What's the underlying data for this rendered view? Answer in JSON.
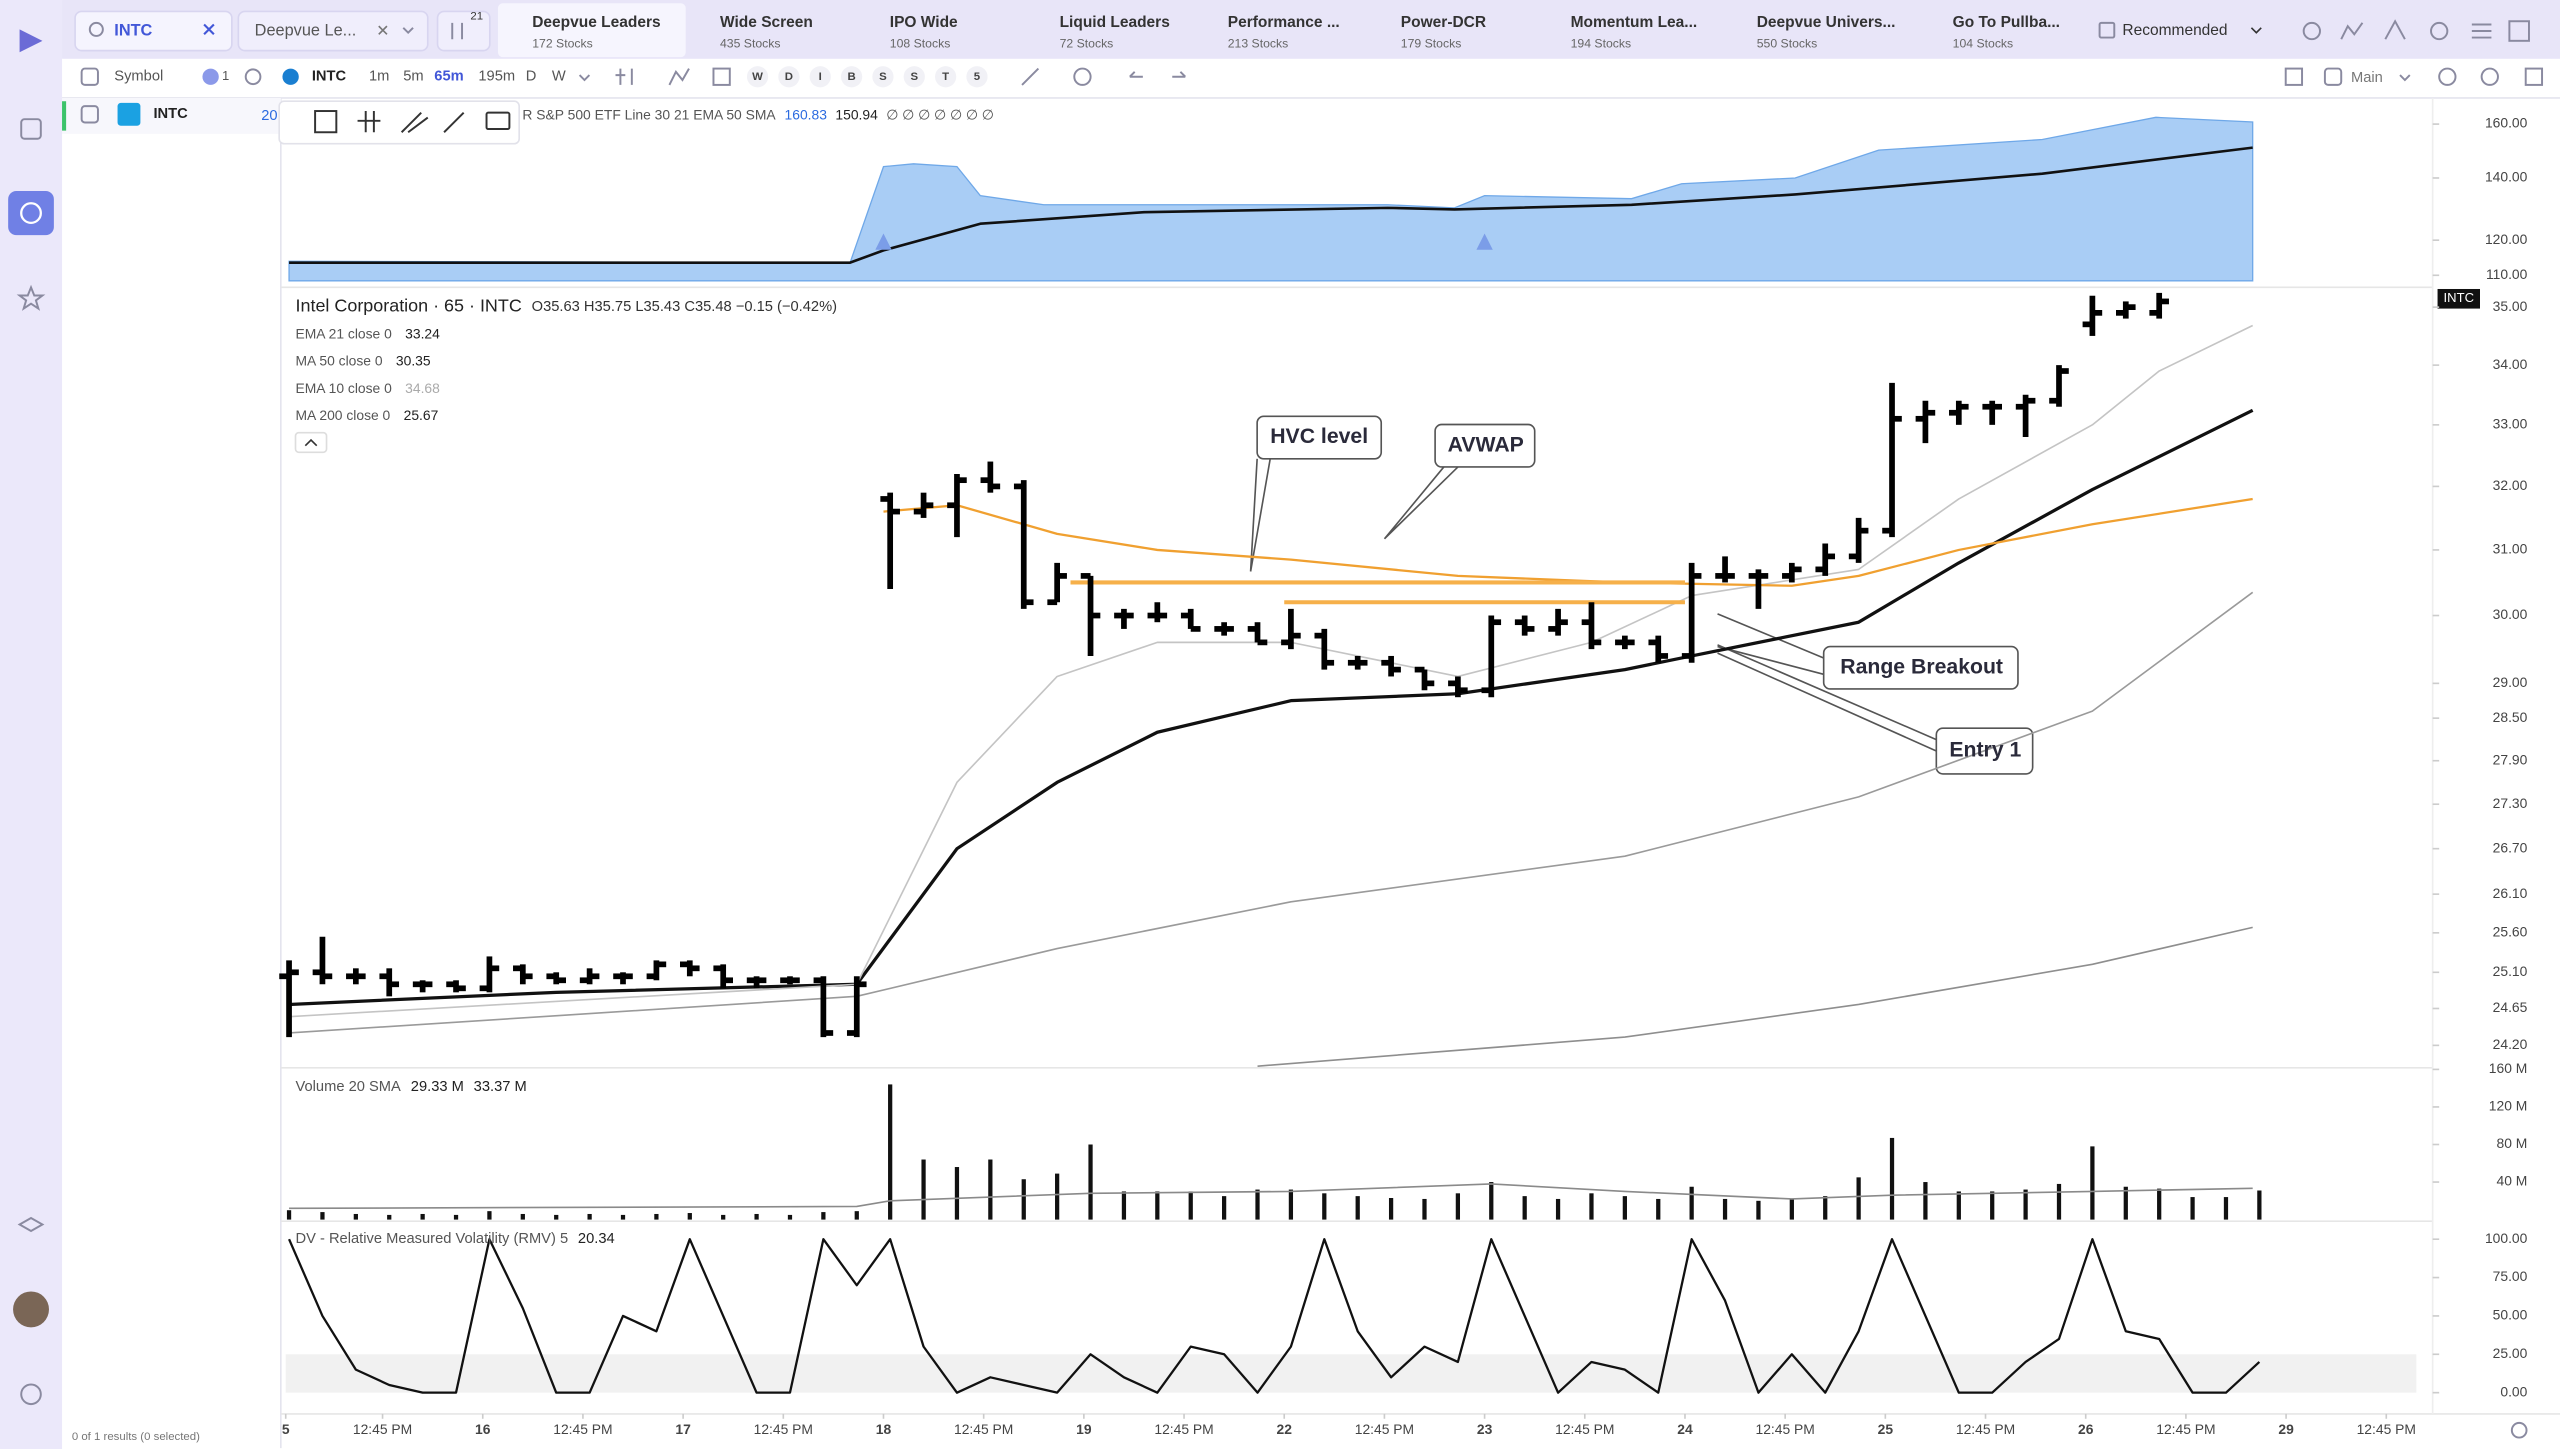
{
  "search": {
    "query": "INTC"
  },
  "watchlist_dropdown": "Deepvue Le...",
  "filter_count": "21",
  "tabs": [
    {
      "name": "Deepvue Leaders",
      "count": "172 Stocks"
    },
    {
      "name": "Wide Screen",
      "count": "435 Stocks"
    },
    {
      "name": "IPO Wide",
      "count": "108 Stocks"
    },
    {
      "name": "Liquid Leaders",
      "count": "72 Stocks"
    },
    {
      "name": "Performance ...",
      "count": "213 Stocks"
    },
    {
      "name": "Power-DCR",
      "count": "179 Stocks"
    },
    {
      "name": "Momentum Lea...",
      "count": "194 Stocks"
    },
    {
      "name": "Deepvue Univers...",
      "count": "550 Stocks"
    },
    {
      "name": "Go To Pullba...",
      "count": "104 Stocks"
    }
  ],
  "sort": "Recommended",
  "toolbar": {
    "symbol_header": "Symbol",
    "count": "1",
    "symbol": "INTC",
    "intervals": [
      "1m",
      "5m",
      "65m",
      "195m",
      "D",
      "W"
    ],
    "modes": [
      "W",
      "D",
      "I",
      "B",
      "S",
      "S",
      "T",
      "5"
    ],
    "layout": "Main"
  },
  "watchlist": {
    "rows": [
      {
        "symbol": "INTC",
        "value": "20"
      }
    ],
    "footer": "0 of 1 results (0 selected)"
  },
  "chart_data": [
    {
      "type": "area",
      "legend": "R S&P 500 ETF Line 30 21 EMA 50 SMA",
      "status_icons": "∅ ∅ ∅ ∅ ∅ ∅ ∅",
      "log_scale": true,
      "xlim": [
        -0.1,
        63.7
      ],
      "ylim": [
        108.5,
        170.7
      ],
      "yticks": [
        {
          "value": 160,
          "label": "160.00"
        },
        {
          "value": 140,
          "label": "140.00"
        },
        {
          "value": 120,
          "label": "120.00"
        },
        {
          "value": 110,
          "label": "110.00"
        }
      ],
      "markers_x": [
        17.8,
        35.8
      ],
      "series": [
        {
          "color": "#a9cdf5",
          "last": "160.83",
          "x": [
            0,
            16.8,
            17.8,
            18.7,
            20,
            20.7,
            22.6,
            25.6,
            32.9,
            34.9,
            35.8,
            40.2,
            41.7,
            45.1,
            47.6,
            52.5,
            55.9,
            58.8
          ],
          "values": [
            113.9,
            113.5,
            144,
            145,
            144,
            134,
            131,
            131,
            131,
            130,
            134,
            133,
            138,
            140,
            150,
            154,
            162.7,
            160.83
          ]
        },
        {
          "color": "#111111",
          "last": "150.94",
          "x": [
            0,
            16.8,
            17.8,
            20.7,
            25.6,
            32.9,
            34.9,
            40.2,
            45.1,
            52.5,
            58.8
          ],
          "values": [
            113.5,
            113.5,
            117,
            125,
            128.6,
            130,
            129.5,
            131,
            134.4,
            141.5,
            150.94
          ]
        }
      ]
    },
    {
      "type": "ohlc",
      "title": "Intel Corporation · 65 · INTC",
      "ohlc_legend": "O35.63 H35.75 L35.43 C35.48 −0.15 (−0.42%)",
      "price_tag": "INTC",
      "log_scale": true,
      "xlim": [
        -0.1,
        63.7
      ],
      "ylim": [
        23.95,
        35.29
      ],
      "yticks": [
        {
          "value": 35,
          "label": "35.00"
        },
        {
          "value": 34,
          "label": "34.00"
        },
        {
          "value": 33,
          "label": "33.00"
        },
        {
          "value": 32,
          "label": "32.00"
        },
        {
          "value": 31,
          "label": "31.00"
        },
        {
          "value": 30,
          "label": "30.00"
        },
        {
          "value": 29,
          "label": "29.00"
        },
        {
          "value": 28.5,
          "label": "28.50"
        },
        {
          "value": 27.9,
          "label": "27.90"
        },
        {
          "value": 27.3,
          "label": "27.30"
        },
        {
          "value": 26.7,
          "label": "26.70"
        },
        {
          "value": 26.1,
          "label": "26.10"
        },
        {
          "value": 25.6,
          "label": "25.60"
        },
        {
          "value": 25.1,
          "label": "25.10"
        },
        24.65,
        {
          "value": 24.2,
          "label": "24.20"
        }
      ],
      "color": "#000000",
      "open": [
        25.05,
        25.1,
        25.05,
        25.05,
        24.95,
        24.95,
        24.9,
        25.15,
        25.05,
        25,
        25.05,
        25.05,
        25.2,
        25.15,
        25,
        25,
        25,
        24.35,
        31.8,
        31.6,
        31.7,
        32.1,
        32,
        30.2,
        30.6,
        30,
        30,
        30,
        29.8,
        29.8,
        29.6,
        29.7,
        29.3,
        29.3,
        29.2,
        29,
        28.9,
        29.9,
        29.8,
        29.9,
        29.6,
        29.6,
        29.4,
        30.6,
        30.6,
        30.6,
        30.7,
        30.9,
        31.3,
        33.1,
        33.2,
        33.3,
        33.3,
        33.4,
        34.7,
        34.9,
        34.9
      ],
      "high": [
        25.25,
        25.55,
        25.15,
        25.15,
        25,
        25,
        25.3,
        25.2,
        25.1,
        25.15,
        25.1,
        25.25,
        25.25,
        25.2,
        25.05,
        25.05,
        25.05,
        25.05,
        31.9,
        31.9,
        32.2,
        32.4,
        32.1,
        30.8,
        30.6,
        30.1,
        30.2,
        30.1,
        29.9,
        29.9,
        30.1,
        29.8,
        29.4,
        29.4,
        29.2,
        29.1,
        30,
        30,
        30.1,
        30.2,
        29.7,
        29.7,
        30.8,
        30.9,
        30.7,
        30.8,
        31.1,
        31.5,
        33.7,
        33.4,
        33.4,
        33.4,
        33.5,
        34,
        35.2,
        35.1,
        35.25
      ],
      "low": [
        24.3,
        24.95,
        24.95,
        24.8,
        24.85,
        24.85,
        24.85,
        24.95,
        24.95,
        24.95,
        24.95,
        25,
        25.05,
        24.9,
        24.9,
        24.95,
        24.3,
        24.3,
        30.4,
        31.5,
        31.2,
        31.9,
        30.1,
        30.2,
        29.4,
        29.8,
        29.9,
        29.8,
        29.7,
        29.6,
        29.5,
        29.2,
        29.2,
        29.1,
        28.9,
        28.8,
        28.8,
        29.7,
        29.7,
        29.5,
        29.5,
        29.3,
        29.3,
        30.5,
        30.1,
        30.5,
        30.6,
        30.8,
        31.2,
        32.7,
        33,
        33,
        32.8,
        33.3,
        34.5,
        34.8,
        34.8
      ],
      "close": [
        25.1,
        25.05,
        25.05,
        24.95,
        24.95,
        24.9,
        25.15,
        25.05,
        25,
        25.05,
        25.05,
        25.2,
        25.15,
        25,
        25,
        25,
        24.35,
        24.95,
        31.6,
        31.7,
        32.1,
        32,
        30.2,
        30.6,
        30,
        30,
        30,
        29.8,
        29.8,
        29.6,
        29.7,
        29.3,
        29.3,
        29.2,
        29,
        28.9,
        29.9,
        29.8,
        29.9,
        29.6,
        29.6,
        29.4,
        30.6,
        30.6,
        30.6,
        30.7,
        30.9,
        31.3,
        33.1,
        33.2,
        33.3,
        33.3,
        33.4,
        33.9,
        34.9,
        35,
        35.1
      ],
      "series": [
        {
          "name": "EMA 21 close 0",
          "last": "33.24",
          "color": "#111111",
          "width": 2,
          "x": [
            0,
            8,
            17,
            20,
            23,
            26,
            30,
            35,
            40,
            42,
            47,
            50,
            54,
            58.8
          ],
          "values": [
            24.7,
            24.85,
            24.95,
            26.7,
            27.6,
            28.3,
            28.75,
            28.85,
            29.2,
            29.4,
            29.9,
            30.8,
            31.95,
            33.24
          ]
        },
        {
          "name": "MA 50 close 0",
          "last": "30.35",
          "color": "#9a9a9a",
          "width": 1,
          "x": [
            0,
            17,
            23,
            30,
            40,
            47,
            54,
            58.8
          ],
          "values": [
            24.35,
            24.8,
            25.4,
            26,
            26.6,
            27.4,
            28.6,
            30.35
          ]
        },
        {
          "name": "EMA 10 close 0",
          "last": "34.68",
          "color": "#c4c4c4",
          "width": 1,
          "x": [
            0,
            17,
            20,
            23,
            26,
            30,
            35,
            39,
            42,
            47,
            50,
            54,
            56,
            58.8
          ],
          "values": [
            24.55,
            24.95,
            27.6,
            29.1,
            29.6,
            29.6,
            29.1,
            29.6,
            30.3,
            30.7,
            31.8,
            33,
            33.9,
            34.68
          ]
        },
        {
          "name": "MA 200 close 0",
          "last": "25.67",
          "color": "#8e8e8e",
          "width": 1,
          "x": [
            29,
            40,
            47,
            54,
            58.8
          ],
          "values": [
            23.95,
            24.3,
            24.7,
            25.2,
            25.67
          ]
        }
      ],
      "avwap": {
        "color": "#f0a030",
        "x": [
          17.8,
          20,
          23,
          26,
          30,
          35,
          40,
          45,
          47,
          50,
          54,
          58.8
        ],
        "values": [
          31.6,
          31.7,
          31.25,
          31,
          30.85,
          30.6,
          30.5,
          30.45,
          30.6,
          31,
          31.4,
          31.8
        ]
      },
      "levels": [
        {
          "value": 30.5,
          "x": [
            23.4,
            41.8
          ],
          "color": "#f6b04a"
        },
        {
          "value": 30.2,
          "x": [
            29.8,
            41.8
          ],
          "color": "#f6b04a"
        }
      ],
      "annotations": [
        "HVC level",
        "AVWAP",
        "Range Breakout",
        "Entry 1"
      ]
    },
    {
      "type": "bar",
      "title": "Volume 20 SMA",
      "value_label": "29.33 M",
      "sma_label": "33.37 M",
      "color": "#111111",
      "xlim": [
        -0.1,
        63.7
      ],
      "ylim": [
        0,
        160
      ],
      "yticks": [
        {
          "value": 160,
          "label": "160 M"
        },
        {
          "value": 120,
          "label": "120 M"
        },
        {
          "value": 80,
          "label": "80 M"
        },
        {
          "value": 40,
          "label": "40 M"
        }
      ],
      "values": [
        10,
        8,
        6,
        5,
        6,
        5,
        9,
        6,
        5,
        6,
        5,
        6,
        7,
        5,
        6,
        5,
        8,
        9,
        144,
        64,
        56,
        64,
        43,
        49,
        80,
        30,
        30,
        30,
        25,
        32,
        32,
        28,
        25,
        23,
        22,
        28,
        40,
        25,
        22,
        28,
        25,
        22,
        35,
        22,
        20,
        22,
        25,
        45,
        87,
        40,
        30,
        30,
        32,
        38,
        78,
        35,
        33,
        24,
        24,
        31
      ],
      "sma": {
        "color": "#8a8a8a",
        "x": [
          0,
          17,
          18,
          24,
          30,
          36,
          40,
          45,
          48,
          54,
          58.8
        ],
        "values": [
          12,
          14,
          20,
          28,
          30,
          38,
          30,
          22,
          26,
          30,
          33.37
        ]
      }
    },
    {
      "type": "line",
      "title": "DV - Relative Measured Volatility (RMV) 5",
      "value_label": "20.34",
      "color": "#111111",
      "xlim": [
        -0.1,
        63.7
      ],
      "ylim": [
        0,
        100
      ],
      "yticks": [
        {
          "value": 100,
          "label": "100.00"
        },
        {
          "value": 75,
          "label": "75.00"
        },
        {
          "value": 50,
          "label": "50.00"
        },
        {
          "value": 25,
          "label": "25.00"
        },
        {
          "value": 0,
          "label": "0.00"
        }
      ],
      "values": [
        100,
        50,
        15,
        5,
        0,
        0,
        100,
        55,
        0,
        0,
        50,
        40,
        100,
        50,
        0,
        0,
        100,
        70,
        100,
        30,
        0,
        10,
        5,
        0,
        25,
        10,
        0,
        30,
        25,
        0,
        30,
        100,
        40,
        10,
        30,
        20,
        100,
        50,
        0,
        20,
        15,
        0,
        100,
        60,
        0,
        25,
        0,
        40,
        100,
        50,
        0,
        0,
        20,
        35,
        100,
        40,
        35,
        0,
        0,
        20
      ],
      "xticks": [
        {
          "value": -0.1,
          "label": "5"
        },
        {
          "value": 2.8,
          "label": "12:45 PM"
        },
        {
          "value": 5.8,
          "label": "16"
        },
        {
          "value": 8.8,
          "label": "12:45 PM"
        },
        {
          "value": 11.8,
          "label": "17"
        },
        {
          "value": 14.8,
          "label": "12:45 PM"
        },
        {
          "value": 17.8,
          "label": "18"
        },
        {
          "value": 20.8,
          "label": "12:45 PM"
        },
        {
          "value": 23.8,
          "label": "19"
        },
        {
          "value": 26.8,
          "label": "12:45 PM"
        },
        {
          "value": 29.8,
          "label": "22"
        },
        {
          "value": 32.8,
          "label": "12:45 PM"
        },
        {
          "value": 35.8,
          "label": "23"
        },
        {
          "value": 38.8,
          "label": "12:45 PM"
        },
        {
          "value": 41.8,
          "label": "24"
        },
        {
          "value": 44.8,
          "label": "12:45 PM"
        },
        {
          "value": 47.8,
          "label": "25"
        },
        {
          "value": 50.8,
          "label": "12:45 PM"
        },
        {
          "value": 53.8,
          "label": "26"
        },
        {
          "value": 56.8,
          "label": "12:45 PM"
        },
        {
          "value": 59.8,
          "label": "29"
        },
        {
          "value": 62.8,
          "label": "12:45 PM"
        }
      ]
    }
  ]
}
